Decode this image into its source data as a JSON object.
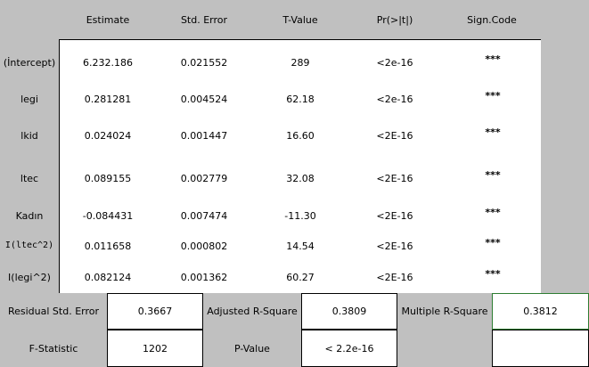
{
  "columns": [
    "Estimate",
    "Std. Error",
    "T-Value",
    "Pr(>|t|)",
    "Sign.Code"
  ],
  "rows": [
    {
      "label": "(İntercept)",
      "estimate": "6.232.186",
      "std_error": "0.021552",
      "t_value": "289",
      "p_value": "<2e-16",
      "sign": "***"
    },
    {
      "label": "legi",
      "estimate": "0.281281",
      "std_error": "0.004524",
      "t_value": "62.18",
      "p_value": "<2e-16",
      "sign": "***"
    },
    {
      "label": "lkid",
      "estimate": "0.024024",
      "std_error": "0.001447",
      "t_value": "16.60",
      "p_value": "<2E-16",
      "sign": "***"
    },
    {
      "label": "ltec",
      "estimate": "0.089155",
      "std_error": "0.002779",
      "t_value": "32.08",
      "p_value": "<2E-16",
      "sign": "***"
    },
    {
      "label": "Kadın",
      "estimate": "-0.084431",
      "std_error": "0.007474",
      "t_value": "-11.30",
      "p_value": "<2E-16",
      "sign": "***"
    },
    {
      "label": "I(ltec^2)",
      "estimate": "0.011658",
      "std_error": "0.000802",
      "t_value": "14.54",
      "p_value": "<2E-16",
      "sign": "***"
    },
    {
      "label": "I(legi^2)",
      "estimate": "0.082124",
      "std_error": "0.001362",
      "t_value": "60.27",
      "p_value": "<2E-16",
      "sign": "***"
    }
  ],
  "stats": {
    "residual_label": "Residual Std. Error",
    "residual_value": "0.3667",
    "adj_r2_label": "Adjusted R-Square",
    "adj_r2_value": "0.3809",
    "mult_r2_label": "Multiple R-Square",
    "mult_r2_value": "0.3812",
    "f_label": "F-Statistic",
    "f_value": "1202",
    "p_label": "P-Value",
    "p_value": "< 2.2e-16"
  }
}
